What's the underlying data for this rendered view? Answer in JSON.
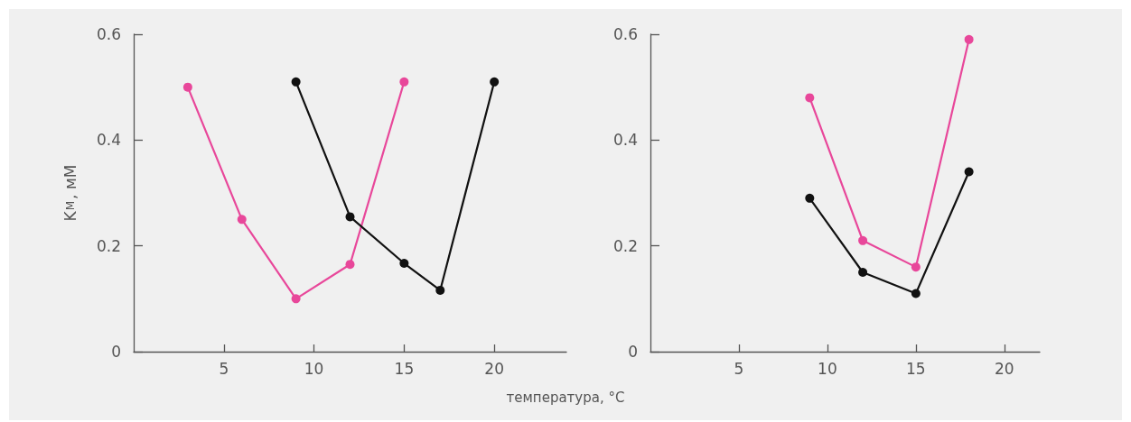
{
  "chart_data": [
    {
      "type": "line",
      "ylabel": "K$_{М}$, мМ",
      "xlabel": "температура, °C",
      "marker": "circle",
      "line_style": "solid",
      "xlim": [
        0,
        24
      ],
      "xticks": [
        5,
        10,
        15,
        20
      ],
      "ylim": [
        0,
        0.6
      ],
      "yticks": [
        0,
        0.2,
        0.4,
        0.6
      ],
      "series": [
        {
          "color": "#e8479a",
          "x": [
            3,
            6,
            9,
            12,
            15
          ],
          "values": [
            0.5,
            0.25,
            0.1,
            0.165,
            0.51
          ]
        },
        {
          "color": "#111111",
          "x": [
            9,
            12,
            15,
            17,
            20
          ],
          "values": [
            0.51,
            0.255,
            0.167,
            0.116,
            0.51
          ]
        }
      ]
    },
    {
      "type": "line",
      "marker": "circle",
      "line_style": "solid",
      "xlim": [
        0,
        22
      ],
      "xticks": [
        5,
        10,
        15,
        20
      ],
      "ylim": [
        0,
        0.6
      ],
      "yticks": [
        0,
        0.2,
        0.4,
        0.6
      ],
      "series": [
        {
          "color": "#e8479a",
          "x": [
            9,
            12,
            15,
            18
          ],
          "values": [
            0.48,
            0.21,
            0.16,
            0.59
          ]
        },
        {
          "color": "#111111",
          "x": [
            9,
            12,
            15,
            18
          ],
          "values": [
            0.29,
            0.15,
            0.11,
            0.34
          ]
        }
      ]
    }
  ]
}
